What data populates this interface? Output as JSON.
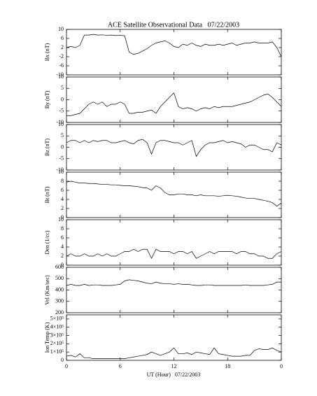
{
  "chart_data": {
    "type": "line",
    "title": "ACE Satellite Observational Data   07/22/2003",
    "xlabel": "UT (Hour)   07/22/2003",
    "xlim": [
      0,
      24
    ],
    "xticks": [
      0,
      6,
      12,
      18,
      {
        "value": 24,
        "label": "0"
      }
    ],
    "x": [
      0,
      0.5,
      1,
      1.5,
      2,
      2.5,
      3,
      3.5,
      4,
      4.5,
      5,
      5.5,
      6,
      6.5,
      7,
      7.5,
      8,
      8.5,
      9,
      9.5,
      10,
      10.5,
      11,
      11.5,
      12,
      12.5,
      13,
      13.5,
      14,
      14.5,
      15,
      15.5,
      16,
      16.5,
      17,
      17.5,
      18,
      18.5,
      19,
      19.5,
      20,
      20.5,
      21,
      21.5,
      22,
      22.5,
      23,
      23.5,
      24
    ],
    "panels": [
      {
        "ylabel": "Bx (nT)",
        "ylim": [
          -10,
          10
        ],
        "yticks": [
          -10,
          -6,
          -2,
          2,
          6,
          10
        ],
        "values": [
          2,
          2.5,
          2,
          3,
          7.5,
          7.5,
          7.8,
          7.5,
          7.6,
          7.4,
          7.5,
          7.3,
          7.4,
          7.2,
          0,
          -1,
          -0.5,
          0.5,
          1.5,
          3,
          4,
          4.5,
          5,
          4,
          2.5,
          2,
          3.5,
          3,
          4,
          3,
          2.5,
          3.5,
          3,
          3,
          3.5,
          3,
          3.5,
          4,
          3,
          3.5,
          4,
          4,
          4.5,
          4,
          4,
          4,
          4.5,
          2,
          -2
        ]
      },
      {
        "ylabel": "By (nT)",
        "ylim": [
          -10,
          10
        ],
        "yticks": [
          -10,
          -5,
          0,
          5,
          10
        ],
        "values": [
          -7,
          -7,
          -6.5,
          -6,
          -4,
          -2,
          -1,
          -2,
          -1,
          -3,
          -2,
          -2,
          -1,
          -2,
          -6,
          -6,
          -5.5,
          -5.5,
          -5,
          -4.5,
          -6,
          -3,
          -1,
          1,
          3,
          -3,
          -4,
          -3.5,
          -4,
          -5,
          -4,
          -3.5,
          -4,
          -3,
          -3.5,
          -3,
          -3,
          -3,
          -2.5,
          -2,
          -1.5,
          -1,
          0,
          1,
          2,
          2.5,
          1,
          -1,
          -3
        ]
      },
      {
        "ylabel": "Bz (nT)",
        "ylim": [
          -10,
          10
        ],
        "yticks": [
          -10,
          -5,
          0,
          5,
          10
        ],
        "values": [
          2,
          3,
          3,
          2,
          3,
          2,
          3,
          2.5,
          3,
          3,
          2,
          2,
          2.5,
          3,
          2,
          1.5,
          3,
          3.5,
          2,
          -3,
          2,
          3,
          3,
          2.5,
          2,
          2,
          1,
          2,
          3,
          -4,
          -1,
          1,
          2,
          2,
          2.5,
          3,
          2,
          2.5,
          2,
          1.5,
          0,
          1,
          1,
          0,
          -1,
          -1,
          -2,
          2,
          1
        ]
      },
      {
        "ylabel": "Bt (nT)",
        "ylim": [
          0,
          10
        ],
        "yticks": [
          0,
          2,
          4,
          6,
          8,
          10
        ],
        "values": [
          7.8,
          8,
          7.8,
          7.6,
          7.6,
          7.5,
          7.5,
          7.4,
          7.3,
          7.3,
          7.2,
          7.2,
          7.1,
          7.0,
          7,
          6.9,
          6.8,
          6.6,
          6.5,
          6,
          7,
          6.5,
          5.5,
          5,
          5,
          5.2,
          5.2,
          5,
          5,
          4.8,
          5,
          4.8,
          4.8,
          4.8,
          4.7,
          4.8,
          4.9,
          4.8,
          4.7,
          4.5,
          4.3,
          4.2,
          4.2,
          4.0,
          3.8,
          3.6,
          3.3,
          2.5,
          3.2
        ]
      },
      {
        "ylabel": "Den (1/cc)",
        "ylim": [
          0,
          10
        ],
        "yticks": [
          0,
          2,
          4,
          6,
          8,
          10
        ],
        "values": [
          2,
          2.5,
          2,
          2,
          2.5,
          2,
          2,
          2.5,
          2,
          2.5,
          2,
          2,
          2.5,
          3,
          3,
          3.5,
          3,
          3.5,
          3.5,
          1.5,
          3.5,
          3,
          3,
          3,
          2.5,
          3,
          3,
          2.5,
          3,
          1.5,
          2,
          2.5,
          3,
          2.5,
          3,
          3,
          3,
          3,
          2.5,
          3,
          3,
          2.5,
          2.5,
          2,
          2,
          1.5,
          1.5,
          2.5,
          3
        ]
      },
      {
        "ylabel": "Vel (Km/sec)",
        "ylim": [
          200,
          600
        ],
        "yticks": [
          200,
          300,
          400,
          500,
          600
        ],
        "values": [
          440,
          450,
          440,
          440,
          450,
          440,
          445,
          445,
          440,
          440,
          440,
          445,
          450,
          480,
          490,
          485,
          480,
          470,
          460,
          455,
          470,
          460,
          455,
          455,
          450,
          455,
          450,
          450,
          445,
          440,
          440,
          445,
          445,
          440,
          440,
          440,
          440,
          440,
          440,
          440,
          445,
          440,
          440,
          440,
          440,
          445,
          450,
          470,
          470
        ]
      },
      {
        "ylabel": "Ion Temp (K)",
        "ylim": [
          0,
          550000
        ],
        "yticks": [
          0,
          {
            "value": 100000,
            "label": "1×10⁵"
          },
          {
            "value": 200000,
            "label": "2×10⁵"
          },
          {
            "value": 300000,
            "label": "3×10⁵"
          },
          {
            "value": 400000,
            "label": "4×10⁵"
          },
          {
            "value": 500000,
            "label": "5×10⁵"
          }
        ],
        "values": [
          50000,
          60000,
          40000,
          80000,
          30000,
          30000,
          20000,
          20000,
          20000,
          20000,
          20000,
          20000,
          20000,
          20000,
          30000,
          40000,
          50000,
          60000,
          70000,
          100000,
          80000,
          60000,
          80000,
          100000,
          150000,
          80000,
          80000,
          90000,
          70000,
          100000,
          90000,
          80000,
          70000,
          150000,
          80000,
          70000,
          60000,
          50000,
          50000,
          50000,
          60000,
          60000,
          120000,
          140000,
          130000,
          130000,
          150000,
          120000,
          100000
        ]
      }
    ]
  }
}
